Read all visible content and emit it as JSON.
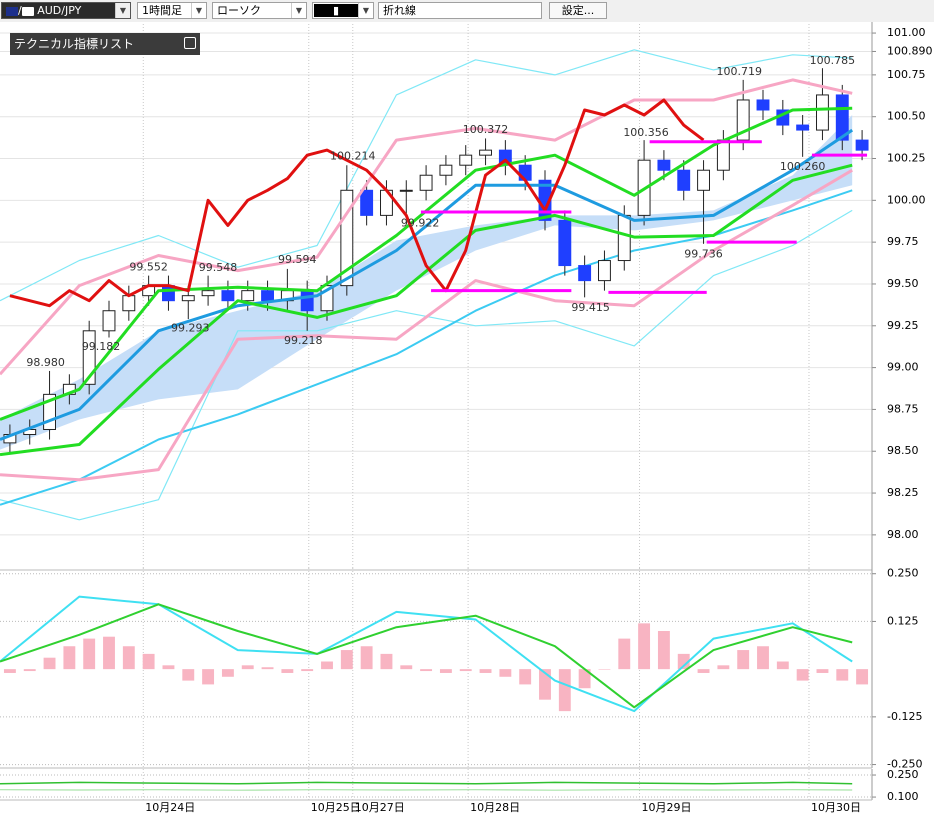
{
  "toolbar": {
    "symbol": "AUD/JPY",
    "timeframe": "1時間足",
    "chart_style": "ローソク",
    "line_style": "折れ線",
    "settings": "設定..."
  },
  "indicator_panel": {
    "title": "テクニカル指標リスト"
  },
  "chart_data": [
    {
      "type": "candlestick",
      "xlim": [
        -0.5,
        43.5
      ],
      "xticks": [
        {
          "value": 6.73,
          "label": "10月24日"
        },
        {
          "value": 15.08,
          "label": "10月25日"
        },
        {
          "value": 17.3,
          "label": "10月27日"
        },
        {
          "value": 23.12,
          "label": "10月28日"
        },
        {
          "value": 31.77,
          "label": "10月29日"
        },
        {
          "value": 40.32,
          "label": "10月30日"
        }
      ],
      "ylim": [
        97.79,
        101.09
      ],
      "yticks": [
        {
          "value": 101,
          "label": "101.00"
        },
        {
          "value": 100.89,
          "label": "100.890"
        },
        100.75,
        {
          "value": 100.5,
          "label": "100.50"
        },
        100.25,
        {
          "value": 100,
          "label": "100.00"
        },
        99.75,
        {
          "value": 99.5,
          "label": "99.50"
        },
        99.25,
        {
          "value": 99,
          "label": "99.00"
        },
        98.75,
        {
          "value": 98.5,
          "label": "98.50"
        },
        98.25,
        {
          "value": 98,
          "label": "98.00"
        }
      ],
      "grid": true,
      "candles": {
        "up_color": "#ffffff",
        "down_color": "#1f3fff",
        "open": [
          98.55,
          98.6,
          98.63,
          98.84,
          98.9,
          99.22,
          99.34,
          99.43,
          99.49,
          99.4,
          99.43,
          99.46,
          99.4,
          99.46,
          99.4,
          99.46,
          99.34,
          99.49,
          100.06,
          99.91,
          100.06,
          100.06,
          100.15,
          100.21,
          100.27,
          100.3,
          100.21,
          100.12,
          99.88,
          99.61,
          99.52,
          99.64,
          99.91,
          100.24,
          100.18,
          100.06,
          100.18,
          100.36,
          100.6,
          100.54,
          100.45,
          100.42,
          100.63,
          100.36
        ],
        "high": [
          98.66,
          98.69,
          98.98,
          98.96,
          99.28,
          99.4,
          99.49,
          99.55,
          99.55,
          99.49,
          99.55,
          99.52,
          99.52,
          99.52,
          99.59,
          99.52,
          99.55,
          100.21,
          100.12,
          100.12,
          100.12,
          100.21,
          100.27,
          100.33,
          100.37,
          100.36,
          100.27,
          100.18,
          99.94,
          99.67,
          99.7,
          99.97,
          100.36,
          100.3,
          100.24,
          100.24,
          100.42,
          100.72,
          100.66,
          100.6,
          100.51,
          100.79,
          100.69,
          100.42
        ],
        "low": [
          98.49,
          98.54,
          98.57,
          98.78,
          98.84,
          99.18,
          99.28,
          99.37,
          99.34,
          99.29,
          99.37,
          99.34,
          99.34,
          99.34,
          99.34,
          99.22,
          99.28,
          99.43,
          99.85,
          99.85,
          99.92,
          100.0,
          100.09,
          100.15,
          100.21,
          100.15,
          100.06,
          99.82,
          99.55,
          99.42,
          99.46,
          99.58,
          99.85,
          100.12,
          100.0,
          99.74,
          100.12,
          100.3,
          100.48,
          100.39,
          100.26,
          100.36,
          100.3,
          100.24
        ],
        "close": [
          98.6,
          98.63,
          98.84,
          98.9,
          99.22,
          99.34,
          99.43,
          99.49,
          99.4,
          99.43,
          99.46,
          99.4,
          99.46,
          99.4,
          99.46,
          99.34,
          99.49,
          100.06,
          99.91,
          100.06,
          100.06,
          100.15,
          100.21,
          100.27,
          100.3,
          100.21,
          100.12,
          99.88,
          99.61,
          99.52,
          99.64,
          99.91,
          100.24,
          100.18,
          100.06,
          100.18,
          100.36,
          100.6,
          100.54,
          100.45,
          100.42,
          100.63,
          100.36,
          100.3
        ]
      },
      "cloud": {
        "color": "#c6def8",
        "x": [
          -0.5,
          3.5,
          7.5,
          11.5,
          15.5,
          19.5,
          23.5,
          27.5,
          31.5,
          35.5,
          39.5,
          42.5
        ],
        "span_a": [
          98.69,
          98.93,
          99.22,
          99.34,
          99.46,
          99.76,
          99.85,
          99.91,
          99.91,
          99.94,
          100.15,
          100.51
        ],
        "span_b": [
          98.51,
          98.69,
          98.81,
          98.87,
          99.17,
          99.46,
          99.7,
          99.85,
          99.82,
          99.88,
          100.0,
          100.09
        ]
      },
      "series": [
        {
          "color": "#80e8f6",
          "width": 1.2,
          "x": [
            -0.5,
            3.5,
            7.5,
            11.5,
            15.5,
            19.5,
            23.5,
            27.5,
            31.5,
            35.5,
            39.5,
            42.5
          ],
          "values": [
            99.4,
            99.64,
            99.79,
            99.6,
            99.73,
            100.63,
            100.84,
            100.75,
            100.9,
            100.78,
            100.87,
            100.85
          ]
        },
        {
          "color": "#80e8f6",
          "width": 1.2,
          "x": [
            -0.5,
            3.5,
            7.5,
            11.5,
            15.5,
            19.5,
            23.5,
            27.5,
            31.5,
            35.5,
            39.5,
            42.5
          ],
          "values": [
            98.21,
            98.09,
            98.21,
            99.22,
            99.22,
            99.34,
            99.25,
            99.28,
            99.13,
            99.55,
            99.73,
            99.94
          ]
        },
        {
          "color": "#3ccbf2",
          "width": 2,
          "x": [
            -0.5,
            3.5,
            7.5,
            11.5,
            15.5,
            19.5,
            23.5,
            27.5,
            31.5,
            35.5,
            39.5,
            42.5
          ],
          "values": [
            98.18,
            98.33,
            98.57,
            98.72,
            98.9,
            99.08,
            99.34,
            99.55,
            99.7,
            99.79,
            99.94,
            100.06
          ]
        },
        {
          "color": "#f7a6c4",
          "width": 3,
          "x": [
            -0.5,
            3.5,
            7.5,
            11.5,
            15.5,
            19.5,
            23.5,
            27.5,
            31.5,
            35.5,
            39.5,
            42.5
          ],
          "values": [
            98.96,
            99.49,
            99.67,
            99.58,
            99.66,
            100.36,
            100.43,
            100.36,
            100.6,
            100.6,
            100.72,
            100.64
          ]
        },
        {
          "color": "#f7a6c4",
          "width": 3,
          "x": [
            -0.5,
            3.5,
            7.5,
            11.5,
            15.5,
            19.5,
            23.5,
            27.5,
            31.5,
            35.5,
            39.5,
            42.5
          ],
          "values": [
            98.36,
            98.33,
            98.39,
            99.17,
            99.19,
            99.17,
            99.52,
            99.4,
            99.37,
            99.7,
            99.97,
            100.18
          ]
        },
        {
          "color": "#1e9be0",
          "width": 3,
          "x": [
            -0.5,
            3.5,
            7.5,
            11.5,
            15.5,
            19.5,
            23.5,
            27.5,
            31.5,
            35.5,
            39.5,
            42.5
          ],
          "values": [
            98.57,
            98.75,
            99.22,
            99.37,
            99.43,
            99.7,
            100.09,
            100.09,
            99.88,
            99.91,
            100.18,
            100.42
          ]
        },
        {
          "color": "#22dd22",
          "width": 3,
          "x": [
            -0.5,
            3.5,
            7.5,
            11.5,
            15.5,
            19.5,
            23.5,
            27.5,
            31.5,
            35.5,
            39.5,
            42.5
          ],
          "values": [
            98.69,
            98.87,
            99.46,
            99.48,
            99.46,
            99.79,
            100.18,
            100.27,
            100.03,
            100.33,
            100.54,
            100.55
          ]
        },
        {
          "color": "#22dd22",
          "width": 3,
          "x": [
            -0.5,
            3.5,
            7.5,
            11.5,
            15.5,
            19.5,
            23.5,
            27.5,
            31.5,
            35.5,
            39.5,
            42.5
          ],
          "values": [
            98.48,
            98.54,
            98.99,
            99.4,
            99.3,
            99.43,
            99.82,
            99.91,
            99.78,
            99.79,
            100.12,
            100.21
          ]
        },
        {
          "color": "#e01010",
          "width": 3,
          "values": [
            99.43,
            99.4,
            99.37,
            99.46,
            99.4,
            99.52,
            99.43,
            99.49,
            99.49,
            99.46,
            100.0,
            99.85,
            100.0,
            100.06,
            100.13,
            100.27,
            100.3,
            100.24,
            100.18,
            100.06,
            99.91,
            99.61,
            99.46,
            99.7,
            100.15,
            100.24,
            100.12,
            99.94,
            100.21,
            100.54,
            100.51,
            100.57,
            100.51,
            100.6,
            100.45,
            100.36,
            null,
            null,
            null,
            null,
            null,
            null,
            null,
            null
          ]
        }
      ],
      "levels": {
        "color": "#ff00ff",
        "items": [
          {
            "x": [
              21.25,
              28.33
            ],
            "value": 99.46
          },
          {
            "x": [
              20.74,
              28.33
            ],
            "value": 99.93
          },
          {
            "x": [
              30.2,
              35.16
            ],
            "value": 99.45
          },
          {
            "x": [
              32.28,
              37.94
            ],
            "value": 100.35
          },
          {
            "x": [
              35.16,
              39.7
            ],
            "value": 99.75
          },
          {
            "x": [
              40.47,
              43.25
            ],
            "value": 100.27
          }
        ]
      },
      "annotations": [
        {
          "x": 1.8,
          "value": 98.98,
          "label": "98.980"
        },
        {
          "x": 4.6,
          "value": 99.182,
          "label": "99.182"
        },
        {
          "x": 7,
          "value": 99.552,
          "label": "99.552"
        },
        {
          "x": 9.1,
          "value": 99.293,
          "label": "99.293"
        },
        {
          "x": 10.5,
          "value": 99.548,
          "label": "99.548"
        },
        {
          "x": 14.5,
          "value": 99.594,
          "label": "99.594"
        },
        {
          "x": 14.8,
          "value": 99.218,
          "label": "99.218"
        },
        {
          "x": 17.3,
          "value": 100.214,
          "label": "100.214"
        },
        {
          "x": 20.7,
          "value": 99.922,
          "label": "99.922"
        },
        {
          "x": 24,
          "value": 100.372,
          "label": "100.372"
        },
        {
          "x": 29.3,
          "value": 99.415,
          "label": "99.415"
        },
        {
          "x": 32.1,
          "value": 100.356,
          "label": "100.356"
        },
        {
          "x": 35,
          "value": 99.736,
          "label": "99.736"
        },
        {
          "x": 36.8,
          "value": 100.719,
          "label": "100.719"
        },
        {
          "x": 41.5,
          "value": 100.785,
          "label": "100.785"
        },
        {
          "x": 40,
          "value": 100.26,
          "label": "100.260"
        }
      ]
    },
    {
      "type": "bar",
      "xlim": [
        -0.5,
        43.5
      ],
      "ylim": [
        -0.259,
        0.265
      ],
      "yticks": [
        {
          "value": 0.25,
          "label": "0.250"
        },
        0.125,
        -0.125,
        {
          "value": -0.25,
          "label": "-0.250"
        }
      ],
      "grid": true,
      "color": "#f8b4c2",
      "values": [
        -0.01,
        -0.005,
        0.03,
        0.06,
        0.08,
        0.085,
        0.06,
        0.04,
        0.01,
        -0.03,
        -0.04,
        -0.02,
        0.01,
        0.005,
        -0.01,
        -0.005,
        0.02,
        0.05,
        0.06,
        0.04,
        0.01,
        -0.005,
        -0.01,
        -0.005,
        -0.01,
        -0.02,
        -0.04,
        -0.08,
        -0.11,
        -0.05,
        0.0,
        0.08,
        0.12,
        0.1,
        0.04,
        -0.01,
        0.01,
        0.05,
        0.06,
        0.02,
        -0.03,
        -0.01,
        -0.03,
        -0.04
      ],
      "series": [
        {
          "color": "#3fe0f2",
          "width": 2,
          "x": [
            -0.5,
            3.5,
            7.5,
            11.5,
            15.5,
            19.5,
            23.5,
            27.5,
            31.5,
            35.5,
            39.5,
            42.5
          ],
          "values": [
            0.02,
            0.19,
            0.17,
            0.05,
            0.04,
            0.15,
            0.13,
            -0.03,
            -0.11,
            0.08,
            0.12,
            0.02
          ]
        },
        {
          "color": "#30d030",
          "width": 2,
          "x": [
            -0.5,
            3.5,
            7.5,
            11.5,
            15.5,
            19.5,
            23.5,
            27.5,
            31.5,
            35.5,
            39.5,
            42.5
          ],
          "values": [
            0.02,
            0.09,
            0.17,
            0.1,
            0.04,
            0.11,
            0.14,
            0.06,
            -0.1,
            0.05,
            0.11,
            0.07
          ]
        }
      ]
    },
    {
      "type": "line",
      "xlim": [
        -0.5,
        43.5
      ],
      "ylim": [
        0.08,
        0.291
      ],
      "yticks": [
        {
          "value": 0.25,
          "label": "0.250"
        },
        {
          "value": 0.1,
          "label": "0.100"
        }
      ],
      "grid": true,
      "series": [
        {
          "color": "#30c030",
          "width": 1.5,
          "x": [
            -0.5,
            3.5,
            7.5,
            11.5,
            15.5,
            19.5,
            23.5,
            27.5,
            31.5,
            35.5,
            39.5,
            42.5
          ],
          "values": [
            0.19,
            0.2,
            0.195,
            0.19,
            0.2,
            0.195,
            0.19,
            0.2,
            0.195,
            0.19,
            0.2,
            0.19
          ]
        },
        {
          "color": "#a8e4a8",
          "width": 1.2,
          "x": [
            -0.5,
            3.5,
            7.5,
            11.5,
            15.5,
            19.5,
            23.5,
            27.5,
            31.5,
            35.5,
            39.5,
            42.5
          ],
          "values": [
            0.15,
            0.148,
            0.15,
            0.147,
            0.15,
            0.148,
            0.15,
            0.147,
            0.15,
            0.148,
            0.15,
            0.148
          ]
        }
      ]
    }
  ]
}
